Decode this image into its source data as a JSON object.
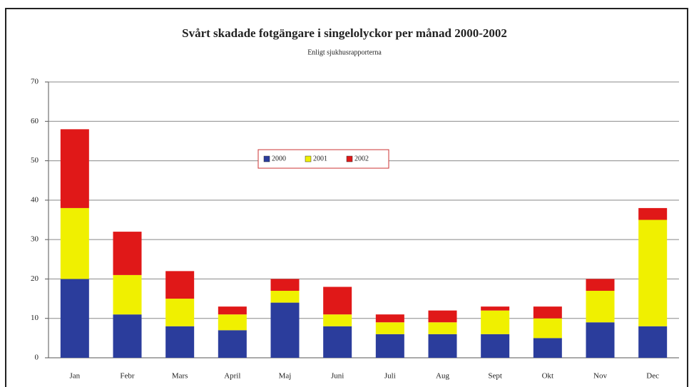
{
  "chart_data": {
    "type": "stacked_bar",
    "title": "Svårt skadade fotgängare i singelolyckor per månad 2000-2002",
    "subtitle": "Enligt sjukhusrapporterna",
    "categories": [
      "Jan",
      "Febr",
      "Mars",
      "April",
      "Maj",
      "Juni",
      "Juli",
      "Aug",
      "Sept",
      "Okt",
      "Nov",
      "Dec"
    ],
    "series": [
      {
        "name": "2000",
        "color": "#2b3d9c",
        "values": [
          20,
          11,
          8,
          7,
          14,
          8,
          6,
          6,
          6,
          5,
          9,
          8
        ]
      },
      {
        "name": "2001",
        "color": "#f0f000",
        "values": [
          18,
          10,
          7,
          4,
          3,
          3,
          3,
          3,
          6,
          5,
          8,
          27
        ]
      },
      {
        "name": "2002",
        "color": "#e01818",
        "values": [
          20,
          11,
          7,
          2,
          3,
          7,
          2,
          3,
          1,
          3,
          3,
          3
        ]
      }
    ],
    "ylim": [
      0,
      70
    ],
    "yticks": [
      0,
      10,
      20,
      30,
      40,
      50,
      60,
      70
    ],
    "grid": true,
    "legend": "top-center"
  }
}
